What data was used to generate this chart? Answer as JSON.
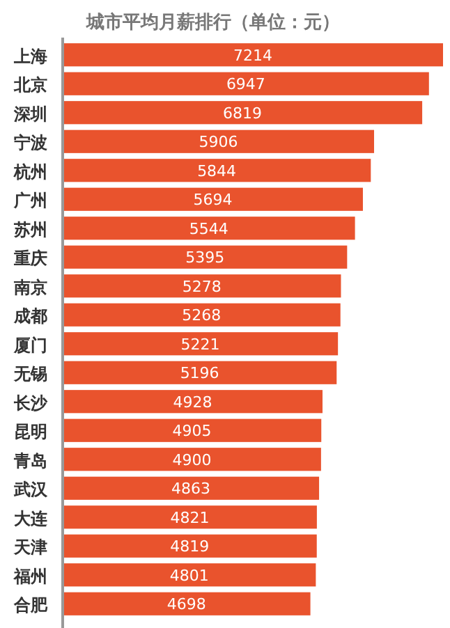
{
  "chart_data": {
    "type": "bar",
    "orientation": "horizontal",
    "title": "城市平均月薪排行（单位：元）",
    "categories": [
      "上海",
      "北京",
      "深圳",
      "宁波",
      "杭州",
      "广州",
      "苏州",
      "重庆",
      "南京",
      "成都",
      "厦门",
      "无锡",
      "长沙",
      "昆明",
      "青岛",
      "武汉",
      "大连",
      "天津",
      "福州",
      "合肥"
    ],
    "values": [
      7214,
      6947,
      6819,
      5906,
      5844,
      5694,
      5544,
      5395,
      5278,
      5268,
      5221,
      5196,
      4928,
      4905,
      4900,
      4863,
      4821,
      4819,
      4801,
      4698
    ],
    "color": "#e9532d",
    "data_labels": true,
    "xlim": [
      0,
      7214
    ]
  }
}
